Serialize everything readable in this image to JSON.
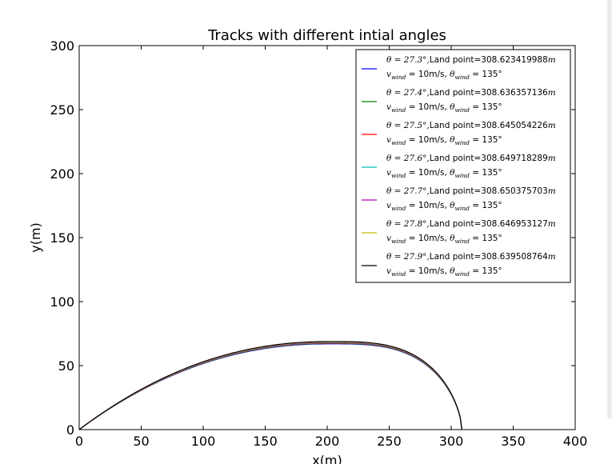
{
  "chart_data": {
    "type": "line",
    "title": "Tracks with different intial angles",
    "xlabel": "x(m)",
    "ylabel": "y(m)",
    "xlim": [
      0,
      400
    ],
    "ylim": [
      0,
      300
    ],
    "xticks": [
      0,
      50,
      100,
      150,
      200,
      250,
      300,
      350,
      400
    ],
    "yticks": [
      0,
      50,
      100,
      150,
      200,
      250,
      300
    ],
    "grid": false,
    "legend_position": "top-right",
    "wind": {
      "speed": "10m/s",
      "angle": "135°"
    },
    "series": [
      {
        "name": "θ=27.3°,Land point=308.623419988m",
        "angle": 27.3,
        "land_point": 308.623419988,
        "peak": [
          202,
          67.0
        ],
        "color": "#0000ff",
        "legend_line1": {
          "angle_text": "θ = 27.3°,",
          "land_text": "Land point=308.623419988",
          "unit": "m"
        },
        "legend_line2": {
          "v_wind": "= 10m/s,",
          "theta_wind": "= 135°"
        }
      },
      {
        "name": "θ=27.4°,Land point=308.636357136m",
        "angle": 27.4,
        "land_point": 308.636357136,
        "peak": [
          202,
          67.3
        ],
        "color": "#008000",
        "legend_line1": {
          "angle_text": "θ = 27.4°,",
          "land_text": "Land point=308.636357136",
          "unit": "m"
        },
        "legend_line2": {
          "v_wind": "= 10m/s,",
          "theta_wind": "= 135°"
        }
      },
      {
        "name": "θ=27.5°,Land point=308.645054226m",
        "angle": 27.5,
        "land_point": 308.645054226,
        "peak": [
          202,
          67.6
        ],
        "color": "#ff0000",
        "legend_line1": {
          "angle_text": "θ = 27.5°,",
          "land_text": "Land point=308.645054226",
          "unit": "m"
        },
        "legend_line2": {
          "v_wind": "= 10m/s,",
          "theta_wind": "= 135°"
        }
      },
      {
        "name": "θ=27.6°,Land point=308.649718289m",
        "angle": 27.6,
        "land_point": 308.649718289,
        "peak": [
          202,
          67.9
        ],
        "color": "#00bfbf",
        "legend_line1": {
          "angle_text": "θ = 27.6°,",
          "land_text": "Land point=308.649718289",
          "unit": "m"
        },
        "legend_line2": {
          "v_wind": "= 10m/s,",
          "theta_wind": "= 135°"
        }
      },
      {
        "name": "θ=27.7°,Land point=308.650375703m",
        "angle": 27.7,
        "land_point": 308.650375703,
        "peak": [
          202,
          68.2
        ],
        "color": "#bf00bf",
        "legend_line1": {
          "angle_text": "θ = 27.7°,",
          "land_text": "Land point=308.650375703",
          "unit": "m"
        },
        "legend_line2": {
          "v_wind": "= 10m/s,",
          "theta_wind": "= 135°"
        }
      },
      {
        "name": "θ=27.8°,Land point=308.646953127m",
        "angle": 27.8,
        "land_point": 308.646953127,
        "peak": [
          202,
          68.5
        ],
        "color": "#bfbf00",
        "legend_line1": {
          "angle_text": "θ = 27.8°,",
          "land_text": "Land point=308.646953127",
          "unit": "m"
        },
        "legend_line2": {
          "v_wind": "= 10m/s,",
          "theta_wind": "= 135°"
        }
      },
      {
        "name": "θ=27.9°,Land point=308.639508764m",
        "angle": 27.9,
        "land_point": 308.639508764,
        "peak": [
          202,
          68.8
        ],
        "color": "#000000",
        "legend_line1": {
          "angle_text": "θ = 27.9°,",
          "land_text": "Land point=308.639508764",
          "unit": "m"
        },
        "legend_line2": {
          "v_wind": "= 10m/s,",
          "theta_wind": "= 135°"
        }
      }
    ]
  }
}
